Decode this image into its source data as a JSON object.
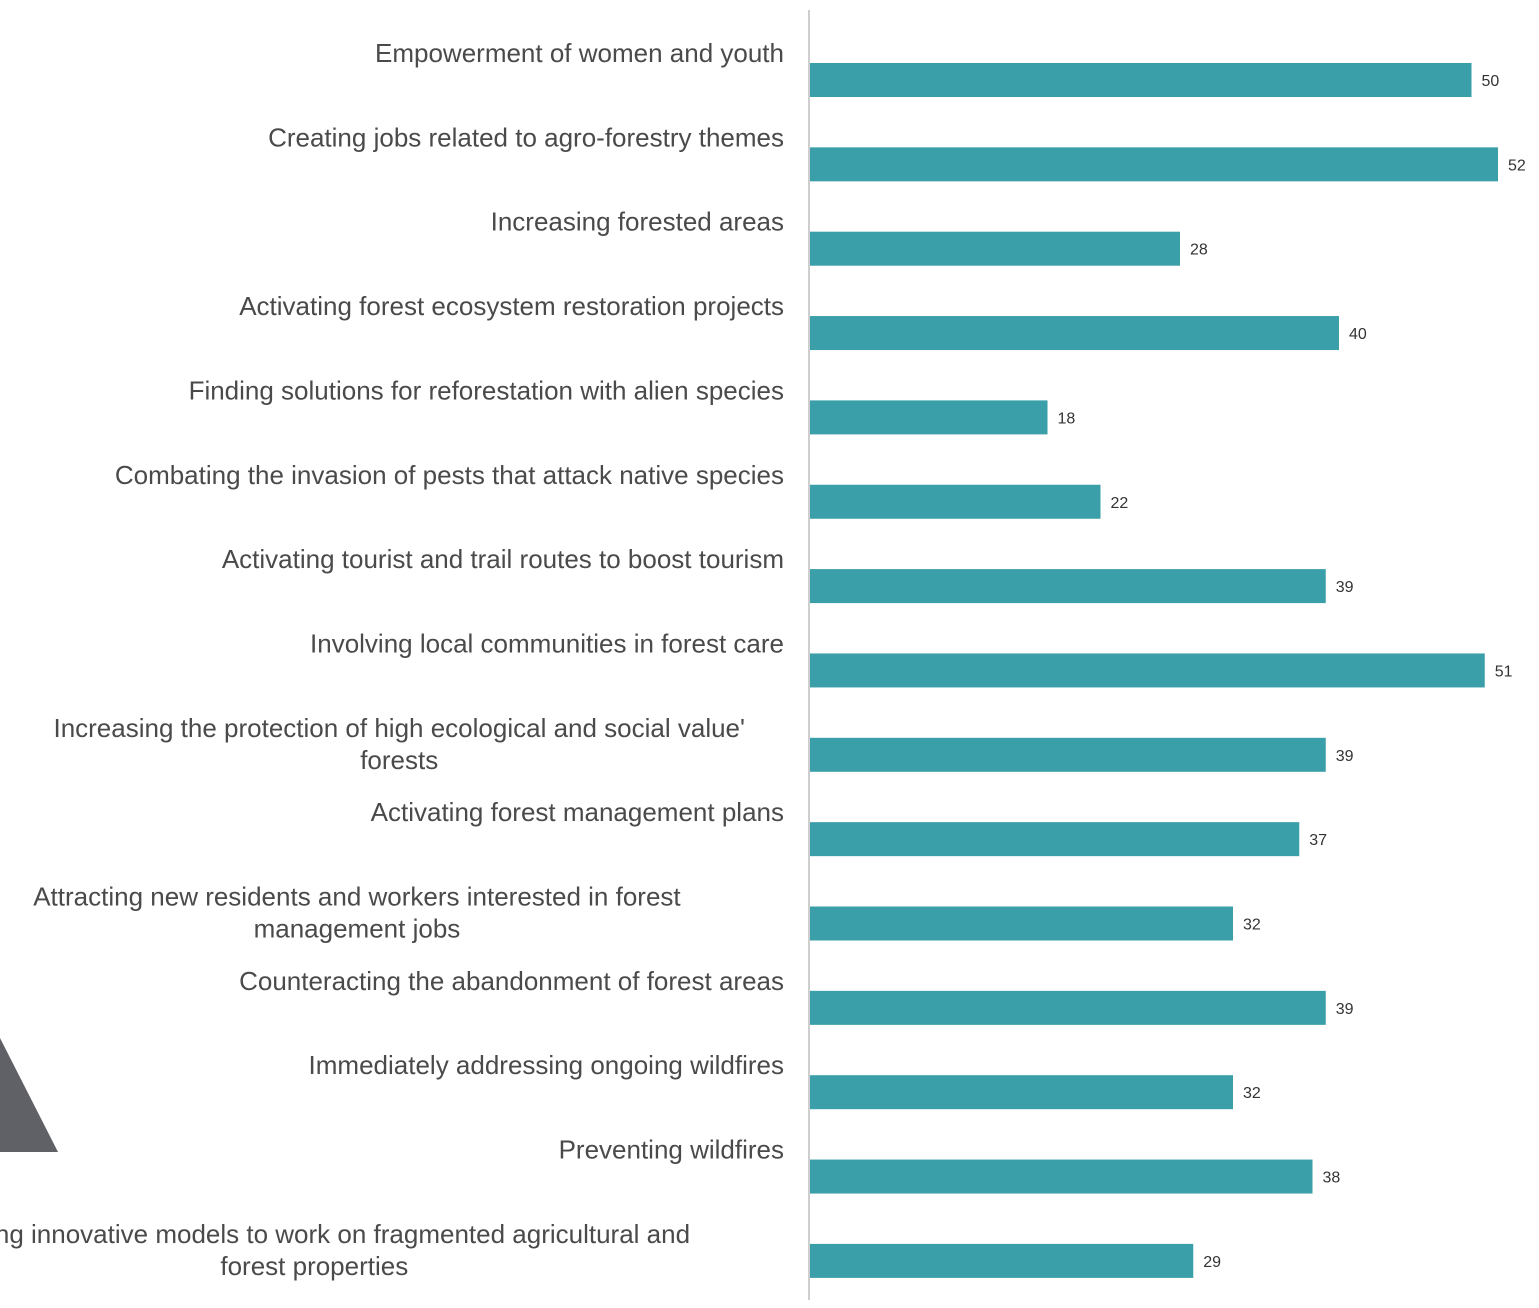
{
  "chart_data": {
    "type": "bar",
    "orientation": "horizontal",
    "categories": [
      "Empowerment of women and youth",
      "Creating jobs related to agro-forestry themes",
      "Increasing forested areas",
      "Activating forest ecosystem restoration projects",
      "Finding solutions for reforestation with alien species",
      "Combating the invasion of pests that attack native species",
      "Activating tourist and trail routes to boost tourism",
      "Involving local communities in forest care",
      "Increasing the protection of high ecological and social value' forests",
      "Activating forest management plans",
      "Attracting new residents and workers interested in forest management jobs",
      "Counteracting the abandonment of forest areas",
      "Immediately addressing ongoing wildfires",
      "Preventing wildfires",
      "Finding innovative models to work on fragmented agricultural and forest properties"
    ],
    "category_lines": [
      [
        "Empowerment of women and youth"
      ],
      [
        "Creating jobs related to agro-forestry themes"
      ],
      [
        "Increasing forested areas"
      ],
      [
        "Activating forest ecosystem restoration projects"
      ],
      [
        "Finding solutions for reforestation with alien species"
      ],
      [
        "Combating the invasion of pests that attack native species"
      ],
      [
        "Activating tourist and trail routes to boost tourism"
      ],
      [
        "Involving local communities in forest care"
      ],
      [
        "Increasing the protection of high ecological and social value'",
        "forests"
      ],
      [
        "Activating forest management plans"
      ],
      [
        "Attracting new residents and workers interested in forest",
        "management jobs"
      ],
      [
        "Counteracting the abandonment of forest areas"
      ],
      [
        "Immediately addressing ongoing wildfires"
      ],
      [
        "Preventing wildfires"
      ],
      [
        "Finding innovative models to work on fragmented agricultural and",
        "forest properties"
      ]
    ],
    "values": [
      50,
      52,
      28,
      40,
      18,
      22,
      39,
      51,
      39,
      37,
      32,
      39,
      32,
      38,
      29
    ],
    "value_labels": [
      "50",
      "52",
      "28",
      "40",
      "18",
      "22",
      "39",
      "51",
      "39",
      "37",
      "32",
      "39",
      "32",
      "38",
      "29"
    ],
    "xlim": [
      0,
      52
    ],
    "grid": false,
    "legend": "none",
    "bar_color": "#3a9fa8",
    "axis_color": "#bdbdbd",
    "decoration_color": "#5f6166"
  }
}
